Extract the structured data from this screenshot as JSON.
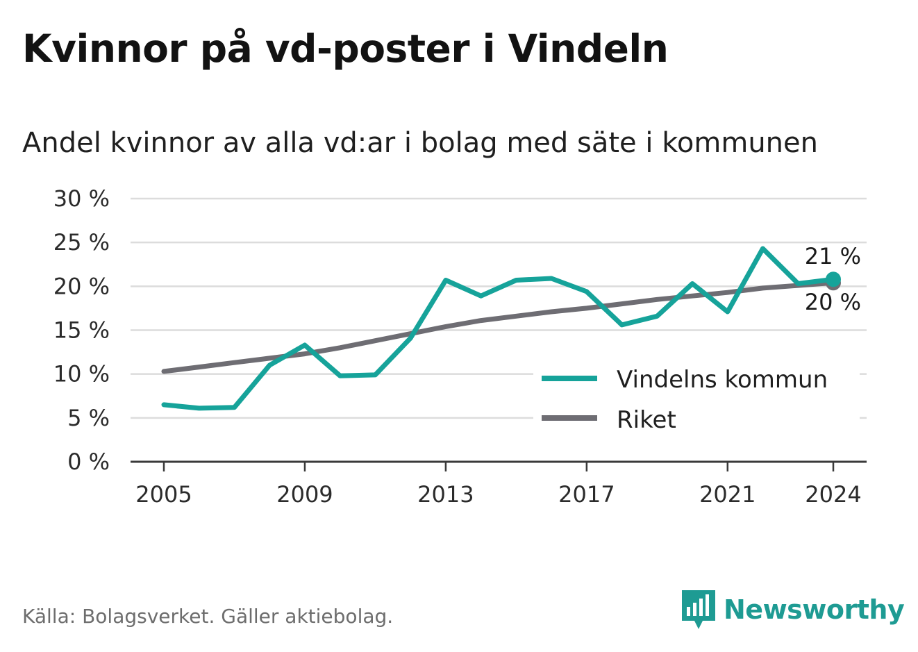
{
  "header": {
    "title": "Kvinnor på vd-poster i Vindeln",
    "subtitle": "Andel kvinnor av alla vd:ar i bolag med säte i kommunen"
  },
  "footer": {
    "source": "Källa: Bolagsverket. Gäller aktiebolag.",
    "brand": "Newsworthy",
    "brand_icon": "bar-chart-speech-bubble-icon"
  },
  "colors": {
    "vindeln": "#16a39a",
    "riket": "#6e6d73",
    "grid": "#dcdcdc",
    "axis": "#3a3a3a",
    "brand": "#1e9b93"
  },
  "chart_data": {
    "type": "line",
    "title": "Kvinnor på vd-poster i Vindeln",
    "subtitle": "Andel kvinnor av alla vd:ar i bolag med säte i kommunen",
    "xlabel": "",
    "ylabel": "",
    "x": [
      2005,
      2006,
      2007,
      2008,
      2009,
      2010,
      2011,
      2012,
      2013,
      2014,
      2015,
      2016,
      2017,
      2018,
      2019,
      2020,
      2021,
      2022,
      2023,
      2024
    ],
    "x_ticks": [
      "2005",
      "2009",
      "2013",
      "2017",
      "2021",
      "2024"
    ],
    "y_ticks": [
      "0 %",
      "5 %",
      "10 %",
      "15 %",
      "20 %",
      "25 %",
      "30 %"
    ],
    "ylim": [
      0,
      30
    ],
    "grid": true,
    "legend_position": "bottom-right",
    "series": [
      {
        "name": "Vindelns kommun",
        "color": "#16a39a",
        "values": [
          6.5,
          6.1,
          6.2,
          11.0,
          13.3,
          9.8,
          9.9,
          14.1,
          20.7,
          18.9,
          20.7,
          20.9,
          19.4,
          15.6,
          16.6,
          20.3,
          17.1,
          24.3,
          20.3,
          20.8
        ],
        "end_label": "21 %"
      },
      {
        "name": "Riket",
        "color": "#6e6d73",
        "values": [
          10.3,
          10.8,
          11.3,
          11.8,
          12.3,
          13.0,
          13.8,
          14.6,
          15.4,
          16.1,
          16.6,
          17.1,
          17.5,
          18.0,
          18.5,
          18.9,
          19.3,
          19.8,
          20.1,
          20.4
        ],
        "end_label": "20 %"
      }
    ]
  }
}
